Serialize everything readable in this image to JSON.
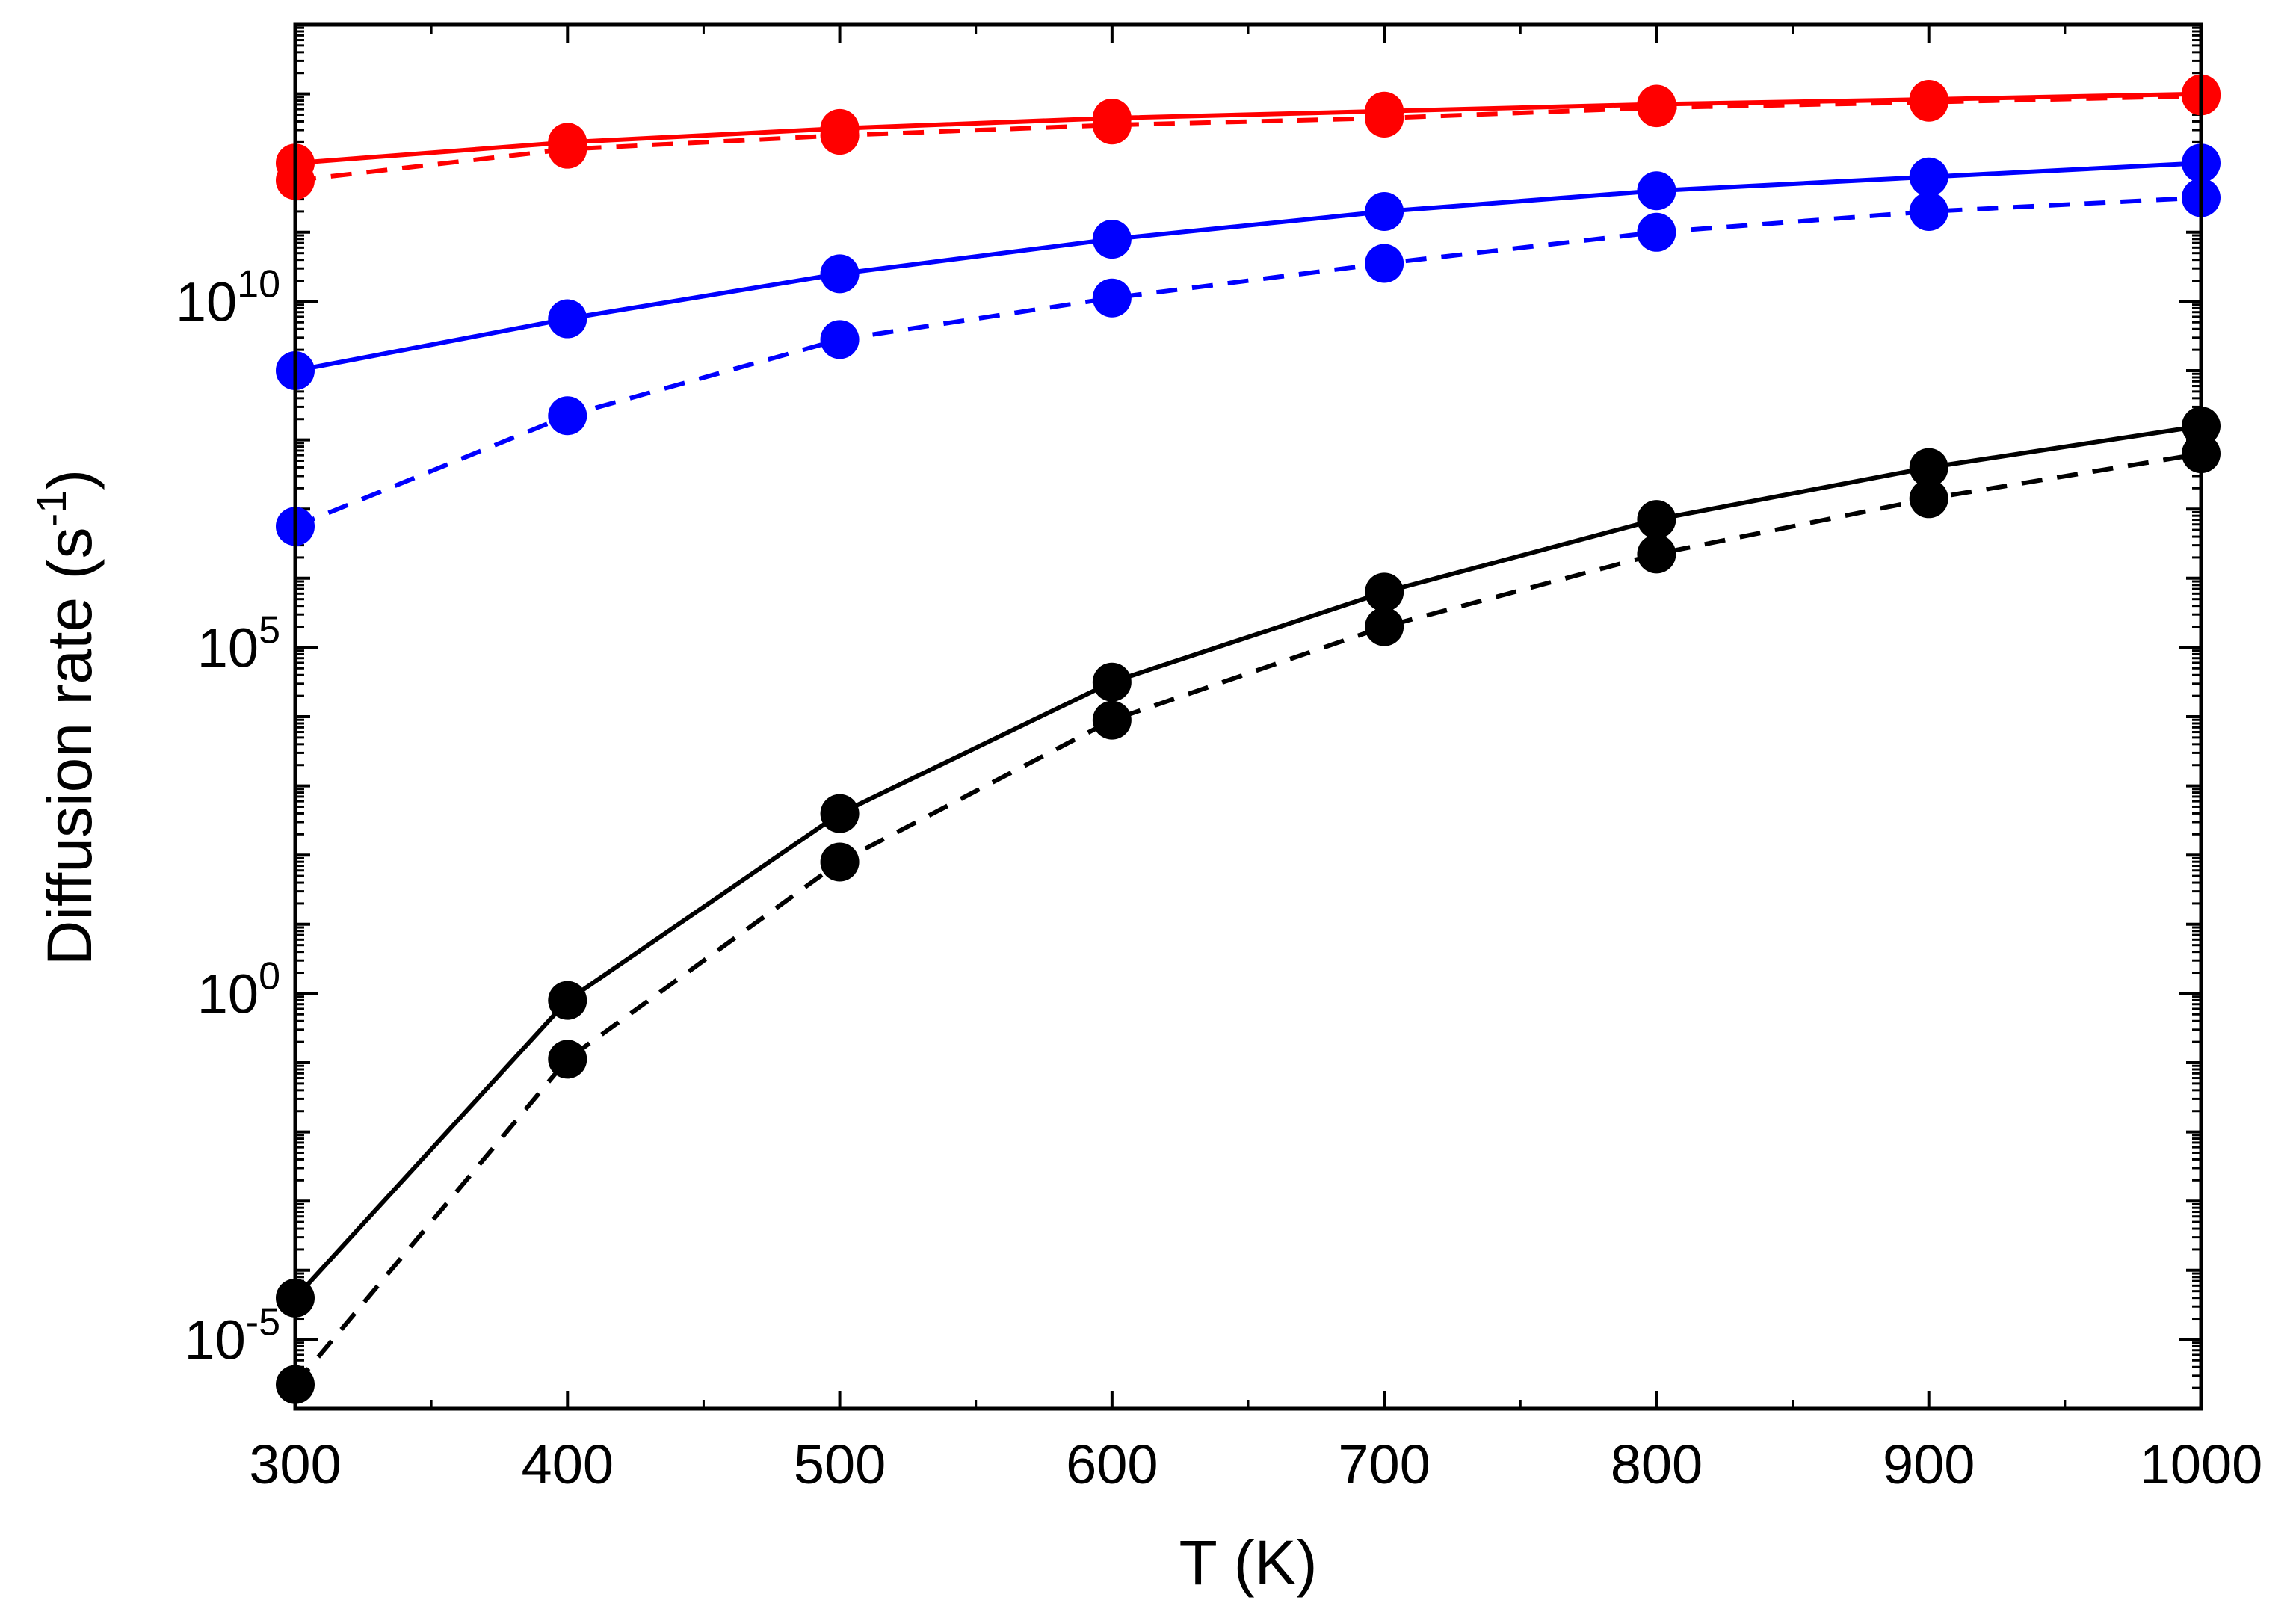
{
  "chart_data": {
    "type": "line",
    "title": "",
    "xlabel": "T (K)",
    "ylabel": "Diffusion rate (s",
    "ylabel_superscript": "-1",
    "ylabel_suffix": ")",
    "yscale": "log",
    "xlim": [
      300,
      1000
    ],
    "ylim_log10": [
      -6,
      14
    ],
    "x": [
      300,
      400,
      500,
      600,
      700,
      800,
      900,
      1000
    ],
    "xticks": [
      300,
      400,
      500,
      600,
      700,
      800,
      900,
      1000
    ],
    "ytick_labels": [
      {
        "base": "10",
        "exp": "-5",
        "log10": -5
      },
      {
        "base": "10",
        "exp": "0",
        "log10": 0
      },
      {
        "base": "10",
        "exp": "5",
        "log10": 5
      },
      {
        "base": "10",
        "exp": "10",
        "log10": 10
      }
    ],
    "series": [
      {
        "name": "red-solid",
        "color": "#ff0000",
        "dash": "solid",
        "log10_values": [
          12.0,
          12.3,
          12.5,
          12.65,
          12.75,
          12.85,
          12.92,
          13.0
        ]
      },
      {
        "name": "red-dashed",
        "color": "#ff0000",
        "dash": "dashed",
        "log10_values": [
          11.75,
          12.2,
          12.4,
          12.55,
          12.65,
          12.8,
          12.88,
          12.97
        ]
      },
      {
        "name": "blue-solid",
        "color": "#0000ff",
        "dash": "solid",
        "log10_values": [
          9.0,
          9.75,
          10.4,
          10.9,
          11.3,
          11.6,
          11.8,
          12.0
        ]
      },
      {
        "name": "blue-dashed",
        "color": "#0000ff",
        "dash": "dashed",
        "log10_values": [
          6.75,
          8.35,
          9.45,
          10.05,
          10.55,
          11.0,
          11.3,
          11.5
        ]
      },
      {
        "name": "black-solid",
        "color": "#000000",
        "dash": "solid",
        "log10_values": [
          -4.4,
          -0.1,
          2.6,
          4.5,
          5.8,
          6.85,
          7.6,
          8.2
        ]
      },
      {
        "name": "black-dashed",
        "color": "#000000",
        "dash": "dashed",
        "log10_values": [
          -5.65,
          -0.95,
          1.9,
          3.95,
          5.3,
          6.35,
          7.15,
          7.8
        ]
      }
    ]
  }
}
